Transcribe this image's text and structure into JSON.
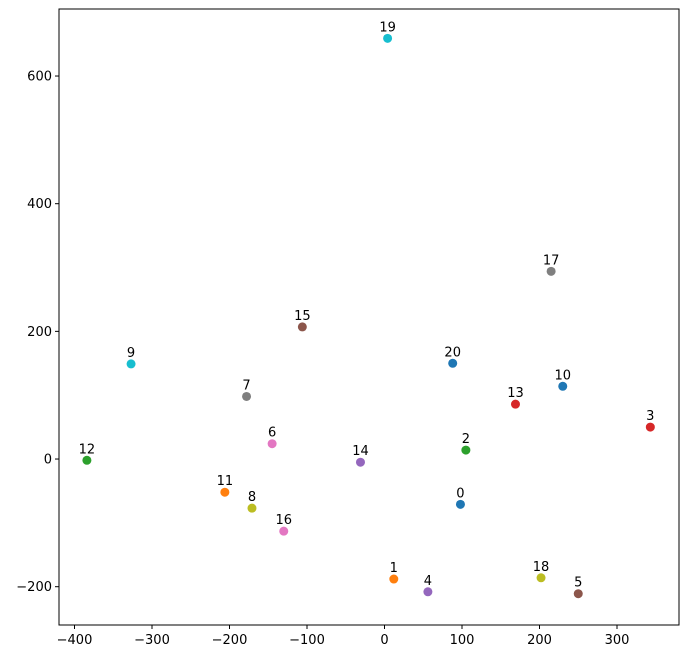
{
  "chart_data": {
    "type": "scatter",
    "title": "",
    "xlabel": "",
    "ylabel": "",
    "xlim": [
      -420,
      380
    ],
    "ylim": [
      -260,
      705
    ],
    "xticks": [
      -400,
      -300,
      -200,
      -100,
      0,
      100,
      200,
      300
    ],
    "yticks": [
      -200,
      0,
      200,
      400,
      600
    ],
    "grid": false,
    "points": [
      {
        "label": "0",
        "x": 98,
        "y": -71,
        "color": "#1f77b4"
      },
      {
        "label": "1",
        "x": 12,
        "y": -188,
        "color": "#ff7f0e"
      },
      {
        "label": "2",
        "x": 105,
        "y": 14,
        "color": "#2ca02c"
      },
      {
        "label": "3",
        "x": 343,
        "y": 50,
        "color": "#d62728"
      },
      {
        "label": "4",
        "x": 56,
        "y": -208,
        "color": "#9467bd"
      },
      {
        "label": "5",
        "x": 250,
        "y": -211,
        "color": "#8c564b"
      },
      {
        "label": "6",
        "x": -145,
        "y": 24,
        "color": "#e377c2"
      },
      {
        "label": "7",
        "x": -178,
        "y": 98,
        "color": "#7f7f7f"
      },
      {
        "label": "8",
        "x": -171,
        "y": -77,
        "color": "#bcbd22"
      },
      {
        "label": "9",
        "x": -327,
        "y": 149,
        "color": "#17becf"
      },
      {
        "label": "10",
        "x": 230,
        "y": 114,
        "color": "#1f77b4"
      },
      {
        "label": "11",
        "x": -206,
        "y": -52,
        "color": "#ff7f0e"
      },
      {
        "label": "12",
        "x": -384,
        "y": -2,
        "color": "#2ca02c"
      },
      {
        "label": "13",
        "x": 169,
        "y": 86,
        "color": "#d62728"
      },
      {
        "label": "14",
        "x": -31,
        "y": -5,
        "color": "#9467bd"
      },
      {
        "label": "15",
        "x": -106,
        "y": 207,
        "color": "#8c564b"
      },
      {
        "label": "16",
        "x": -130,
        "y": -113,
        "color": "#e377c2"
      },
      {
        "label": "17",
        "x": 215,
        "y": 294,
        "color": "#7f7f7f"
      },
      {
        "label": "18",
        "x": 202,
        "y": -186,
        "color": "#bcbd22"
      },
      {
        "label": "19",
        "x": 4,
        "y": 659,
        "color": "#17becf"
      },
      {
        "label": "20",
        "x": 88,
        "y": 150,
        "color": "#1f77b4"
      }
    ]
  }
}
